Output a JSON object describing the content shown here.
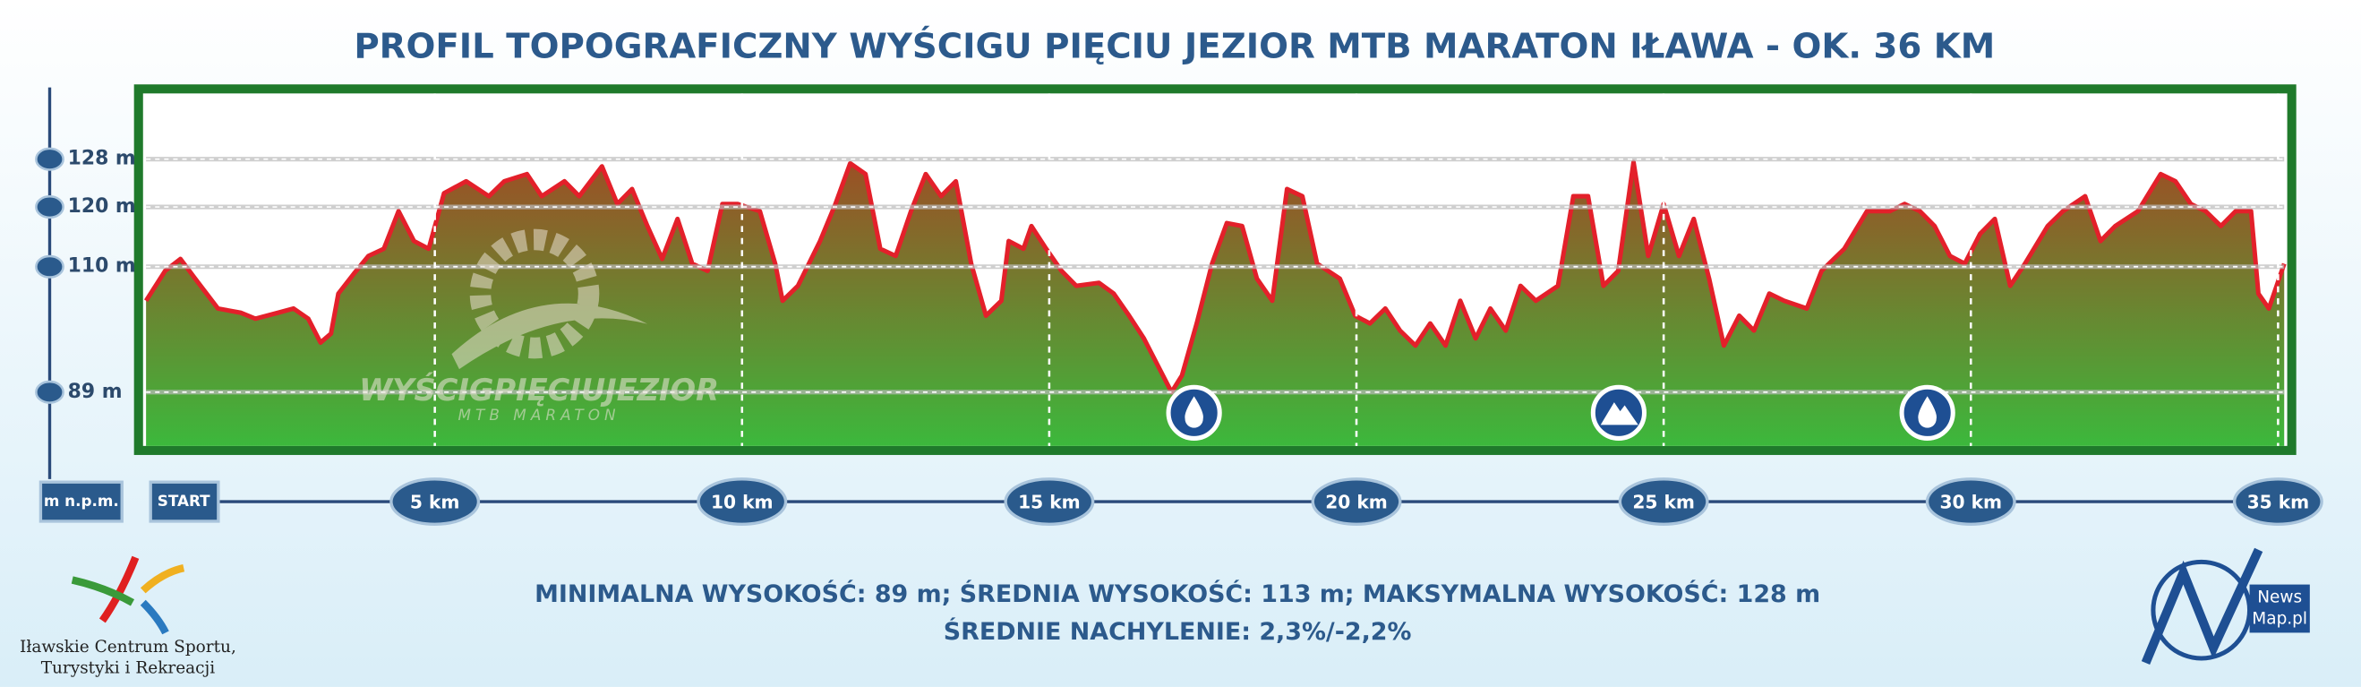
{
  "chart_data": {
    "type": "area",
    "title": "PROFIL TOPOGRAFICZNY WYŚCIGU PIĘCIU JEZIOR MTB MARATON IŁAWA - OK. 36 KM",
    "y_label": "m n.p.m.",
    "start_label": "START",
    "annotations": [
      "MINIMALNA WYSOKOŚĆ: 89 m; ŚREDNIA WYSOKOŚĆ: 113 m; MAKSYMALNA WYSOKOŚĆ: 128 m",
      "ŚREDNIE NACHYLENIE: 2,3%/-2,2%"
    ],
    "watermark": [
      "WYŚCIGPIĘCIUJEZIOR",
      "MTB MARATON"
    ],
    "logo_left": [
      "Iławskie Centrum Sportu,",
      "Turystyki i Rekreacji"
    ],
    "logo_right": [
      "News",
      "Map.pl"
    ],
    "line_color": "#e3202a",
    "fill_top_color": "#b3361f",
    "fill_bottom_color": "#3cb83c",
    "grid": true,
    "xlim": [
      0.3,
      35.1
    ],
    "ylim": [
      80,
      139
    ],
    "xticks": [
      {
        "value": 5,
        "label": "5 km"
      },
      {
        "value": 10,
        "label": "10 km"
      },
      {
        "value": 15,
        "label": "15 km"
      },
      {
        "value": 20,
        "label": "20 km"
      },
      {
        "value": 25,
        "label": "25 km"
      },
      {
        "value": 30,
        "label": "30 km"
      },
      {
        "value": 35,
        "label": "35 km"
      }
    ],
    "yticks": [
      {
        "value": 89,
        "label": "89 m"
      },
      {
        "value": 110,
        "label": "110 m"
      },
      {
        "value": 120,
        "label": "120 m"
      },
      {
        "value": 128,
        "label": "128 m"
      }
    ],
    "x": [
      0.3,
      0.61,
      0.86,
      1.1,
      1.47,
      1.84,
      2.08,
      2.45,
      2.7,
      2.94,
      3.14,
      3.31,
      3.43,
      3.68,
      3.92,
      4.17,
      4.41,
      4.66,
      4.9,
      5.15,
      5.51,
      5.88,
      6.13,
      6.5,
      6.74,
      7.11,
      7.35,
      7.72,
      7.97,
      8.21,
      8.46,
      8.7,
      8.95,
      9.19,
      9.44,
      9.68,
      9.93,
      10.29,
      10.54,
      10.66,
      10.91,
      11.27,
      11.52,
      11.76,
      12.01,
      12.25,
      12.5,
      12.75,
      12.99,
      13.24,
      13.48,
      13.73,
      13.97,
      14.22,
      14.34,
      14.58,
      14.71,
      14.95,
      15.2,
      15.44,
      15.81,
      16.05,
      16.3,
      16.54,
      16.79,
      16.99,
      17.16,
      17.4,
      17.65,
      17.89,
      18.14,
      18.38,
      18.63,
      18.87,
      19.12,
      19.36,
      19.73,
      19.98,
      20.22,
      20.47,
      20.71,
      20.96,
      21.2,
      21.45,
      21.69,
      21.94,
      22.18,
      22.43,
      22.67,
      22.92,
      23.28,
      23.53,
      23.77,
      24.02,
      24.26,
      24.51,
      24.75,
      25.0,
      25.25,
      25.49,
      25.74,
      25.98,
      26.23,
      26.47,
      26.72,
      26.96,
      27.33,
      27.57,
      27.94,
      28.31,
      28.68,
      28.92,
      29.17,
      29.41,
      29.66,
      29.9,
      30.15,
      30.39,
      30.64,
      30.88,
      31.25,
      31.5,
      31.86,
      32.11,
      32.35,
      32.72,
      33.09,
      33.33,
      33.58,
      33.82,
      34.07,
      34.31,
      34.56,
      34.68,
      34.85,
      35.1
    ],
    "values": [
      104.3,
      109.3,
      111.3,
      108,
      103,
      102.3,
      101.3,
      102.3,
      103,
      101.3,
      97.3,
      98.8,
      105.5,
      108.8,
      111.8,
      113,
      119.3,
      114.3,
      113,
      122.3,
      124.3,
      121.8,
      124.3,
      125.5,
      121.8,
      124.3,
      121.8,
      126.8,
      120.5,
      123,
      116.8,
      111.3,
      118,
      110.5,
      109.3,
      120.5,
      120.5,
      119.3,
      110.5,
      104.3,
      106.8,
      114.3,
      120.5,
      127.3,
      125.5,
      113,
      111.8,
      119.3,
      125.5,
      121.8,
      124.3,
      110.5,
      101.8,
      104.3,
      114.3,
      113,
      116.8,
      113,
      109.3,
      106.8,
      107.3,
      105.5,
      101.8,
      98,
      93,
      89,
      91.8,
      100.5,
      110.5,
      117.3,
      116.8,
      108,
      104.3,
      123,
      121.8,
      110.5,
      108,
      101.8,
      100.5,
      103,
      99.3,
      96.8,
      100.5,
      96.8,
      104.3,
      98,
      103,
      99.3,
      106.8,
      104.3,
      106.8,
      121.8,
      121.8,
      106.8,
      109.3,
      127.5,
      111.8,
      120.5,
      111.8,
      118,
      108,
      96.8,
      101.8,
      99.3,
      105.5,
      104.3,
      103,
      109.3,
      113,
      119.3,
      119.3,
      120.5,
      119.3,
      116.8,
      111.8,
      110.5,
      115.5,
      118,
      106.8,
      110.5,
      116.8,
      119.3,
      121.8,
      114.3,
      116.8,
      119.3,
      125.5,
      124.3,
      120.5,
      119.3,
      116.8,
      119.3,
      119.3,
      105.5,
      103,
      110.5
    ]
  }
}
